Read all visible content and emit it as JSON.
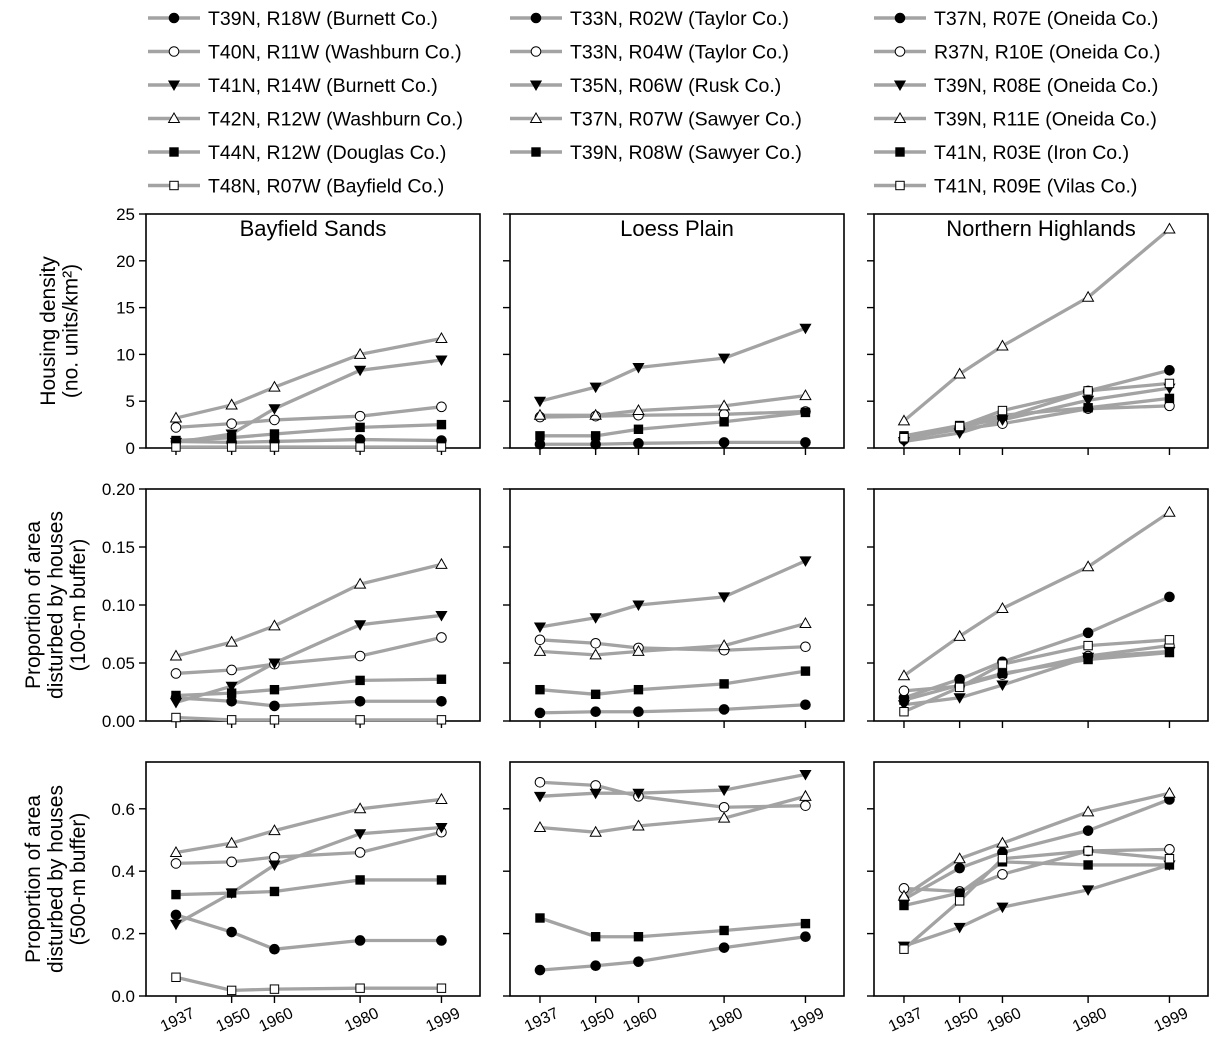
{
  "legend": [
    {
      "label": "T39N, R18W (Burnett Co.)",
      "marker": "filled-circle"
    },
    {
      "label": "T40N, R11W (Washburn Co.)",
      "marker": "open-circle"
    },
    {
      "label": "T41N, R14W (Burnett Co.)",
      "marker": "filled-triangle-down"
    },
    {
      "label": "T42N, R12W (Washburn Co.)",
      "marker": "open-triangle-up"
    },
    {
      "label": "T44N, R12W (Douglas Co.)",
      "marker": "filled-square"
    },
    {
      "label": "T48N, R07W (Bayfield Co.)",
      "marker": "open-square"
    },
    {
      "label": "T33N, R02W (Taylor Co.)",
      "marker": "filled-circle"
    },
    {
      "label": "T33N, R04W (Taylor Co.)",
      "marker": "open-circle"
    },
    {
      "label": "T35N, R06W (Rusk Co.)",
      "marker": "filled-triangle-down"
    },
    {
      "label": "T37N, R07W (Sawyer Co.)",
      "marker": "open-triangle-up"
    },
    {
      "label": "T39N, R08W (Sawyer Co.)",
      "marker": "filled-square"
    },
    {
      "label": "T37N, R07E (Oneida Co.)",
      "marker": "filled-circle"
    },
    {
      "label": "R37N, R10E (Oneida Co.)",
      "marker": "open-circle"
    },
    {
      "label": "T39N, R08E (Oneida Co.)",
      "marker": "filled-triangle-down"
    },
    {
      "label": "T39N, R11E (Oneida Co.)",
      "marker": "open-triangle-up"
    },
    {
      "label": "T41N, R03E (Iron Co.)",
      "marker": "filled-square"
    },
    {
      "label": "T41N, R09E (Vilas Co.)",
      "marker": "open-square"
    }
  ],
  "colors": {
    "line": "#a3a3a3",
    "marker": "#000000",
    "axis": "#000000"
  },
  "chart_data": {
    "type": "line",
    "x": [
      1937,
      1950,
      1960,
      1980,
      1999
    ],
    "regions": [
      "Bayfield Sands",
      "Loess Plain",
      "Northern Highlands"
    ],
    "rows": [
      {
        "ylabel_lines": [
          "Housing density",
          "(no. units/km²)"
        ],
        "ylim": [
          0,
          25
        ],
        "yticks": [
          "0",
          "5",
          "10",
          "15",
          "20",
          "25"
        ],
        "panels": [
          {
            "region": "Bayfield Sands",
            "series": [
              {
                "name": "T39N, R18W (Burnett Co.)",
                "marker": "filled-circle",
                "values": [
                  0.7,
                  0.6,
                  0.7,
                  0.9,
                  0.8
                ]
              },
              {
                "name": "T40N, R11W (Washburn Co.)",
                "marker": "open-circle",
                "values": [
                  2.2,
                  2.6,
                  3.0,
                  3.4,
                  4.4
                ]
              },
              {
                "name": "T41N, R14W (Burnett Co.)",
                "marker": "filled-triangle-down",
                "values": [
                  0.6,
                  1.5,
                  4.2,
                  8.3,
                  9.4
                ]
              },
              {
                "name": "T42N, R12W (Washburn Co.)",
                "marker": "open-triangle-up",
                "values": [
                  3.2,
                  4.6,
                  6.5,
                  10.0,
                  11.7
                ]
              },
              {
                "name": "T44N, R12W (Douglas Co.)",
                "marker": "filled-square",
                "values": [
                  0.8,
                  1.1,
                  1.5,
                  2.2,
                  2.5
                ]
              },
              {
                "name": "T48N, R07W (Bayfield Co.)",
                "marker": "open-square",
                "values": [
                  0.1,
                  0.1,
                  0.1,
                  0.1,
                  0.1
                ]
              }
            ]
          },
          {
            "region": "Loess Plain",
            "series": [
              {
                "name": "T33N, R02W (Taylor Co.)",
                "marker": "filled-circle",
                "values": [
                  0.4,
                  0.4,
                  0.5,
                  0.6,
                  0.6
                ]
              },
              {
                "name": "T33N, R04W (Taylor Co.)",
                "marker": "open-circle",
                "values": [
                  3.3,
                  3.4,
                  3.5,
                  3.6,
                  3.9
                ]
              },
              {
                "name": "T35N, R06W (Rusk Co.)",
                "marker": "filled-triangle-down",
                "values": [
                  5.0,
                  6.5,
                  8.6,
                  9.6,
                  12.8
                ]
              },
              {
                "name": "T37N, R07W (Sawyer Co.)",
                "marker": "open-triangle-up",
                "values": [
                  3.5,
                  3.5,
                  4.0,
                  4.5,
                  5.6
                ]
              },
              {
                "name": "T39N, R08W (Sawyer Co.)",
                "marker": "filled-square",
                "values": [
                  1.3,
                  1.3,
                  2.0,
                  2.8,
                  3.8
                ]
              }
            ]
          },
          {
            "region": "Northern Highlands",
            "series": [
              {
                "name": "T37N, R07E (Oneida Co.)",
                "marker": "filled-circle",
                "values": [
                  0.9,
                  2.2,
                  3.2,
                  6.1,
                  8.3
                ]
              },
              {
                "name": "R37N, R10E (Oneida Co.)",
                "marker": "open-circle",
                "values": [
                  1.0,
                  2.0,
                  2.6,
                  4.2,
                  4.5
                ]
              },
              {
                "name": "T39N, R08E (Oneida Co.)",
                "marker": "filled-triangle-down",
                "values": [
                  0.7,
                  1.6,
                  3.0,
                  5.1,
                  6.4
                ]
              },
              {
                "name": "T39N, R11E (Oneida Co.)",
                "marker": "open-triangle-up",
                "values": [
                  2.9,
                  7.9,
                  10.9,
                  16.1,
                  23.4
                ]
              },
              {
                "name": "T41N, R03E (Iron Co.)",
                "marker": "filled-square",
                "values": [
                  1.3,
                  2.4,
                  3.5,
                  4.3,
                  5.3
                ]
              },
              {
                "name": "T41N, R09E (Vilas Co.)",
                "marker": "open-square",
                "values": [
                  1.1,
                  2.3,
                  4.0,
                  6.1,
                  6.9
                ]
              }
            ]
          }
        ]
      },
      {
        "ylabel_lines": [
          "Proportion of area",
          "disturbed by houses",
          "(100-m buffer)"
        ],
        "ylim": [
          0,
          0.2
        ],
        "yticks": [
          "0.00",
          "0.05",
          "0.10",
          "0.15",
          "0.20"
        ],
        "panels": [
          {
            "region": "Bayfield Sands",
            "series": [
              {
                "name": "T39N, R18W (Burnett Co.)",
                "marker": "filled-circle",
                "values": [
                  0.02,
                  0.017,
                  0.013,
                  0.017,
                  0.017
                ]
              },
              {
                "name": "T40N, R11W (Washburn Co.)",
                "marker": "open-circle",
                "values": [
                  0.041,
                  0.044,
                  0.049,
                  0.056,
                  0.072
                ]
              },
              {
                "name": "T41N, R14W (Burnett Co.)",
                "marker": "filled-triangle-down",
                "values": [
                  0.016,
                  0.03,
                  0.05,
                  0.083,
                  0.091
                ]
              },
              {
                "name": "T42N, R12W (Washburn Co.)",
                "marker": "open-triangle-up",
                "values": [
                  0.056,
                  0.068,
                  0.082,
                  0.118,
                  0.135
                ]
              },
              {
                "name": "T44N, R12W (Douglas Co.)",
                "marker": "filled-square",
                "values": [
                  0.022,
                  0.024,
                  0.027,
                  0.035,
                  0.036
                ]
              },
              {
                "name": "T48N, R07W (Bayfield Co.)",
                "marker": "open-square",
                "values": [
                  0.003,
                  0.001,
                  0.001,
                  0.001,
                  0.001
                ]
              }
            ]
          },
          {
            "region": "Loess Plain",
            "series": [
              {
                "name": "T33N, R02W (Taylor Co.)",
                "marker": "filled-circle",
                "values": [
                  0.007,
                  0.008,
                  0.008,
                  0.01,
                  0.014
                ]
              },
              {
                "name": "T33N, R04W (Taylor Co.)",
                "marker": "open-circle",
                "values": [
                  0.07,
                  0.067,
                  0.063,
                  0.061,
                  0.064
                ]
              },
              {
                "name": "T35N, R06W (Rusk Co.)",
                "marker": "filled-triangle-down",
                "values": [
                  0.081,
                  0.089,
                  0.1,
                  0.107,
                  0.138
                ]
              },
              {
                "name": "T37N, R07W (Sawyer Co.)",
                "marker": "open-triangle-up",
                "values": [
                  0.06,
                  0.057,
                  0.06,
                  0.065,
                  0.084
                ]
              },
              {
                "name": "T39N, R08W (Sawyer Co.)",
                "marker": "filled-square",
                "values": [
                  0.027,
                  0.023,
                  0.027,
                  0.032,
                  0.043
                ]
              }
            ]
          },
          {
            "region": "Northern Highlands",
            "series": [
              {
                "name": "T37N, R07E (Oneida Co.)",
                "marker": "filled-circle",
                "values": [
                  0.02,
                  0.036,
                  0.051,
                  0.076,
                  0.107
                ]
              },
              {
                "name": "R37N, R10E (Oneida Co.)",
                "marker": "open-circle",
                "values": [
                  0.026,
                  0.03,
                  0.04,
                  0.056,
                  0.065
                ]
              },
              {
                "name": "T39N, R08E (Oneida Co.)",
                "marker": "filled-triangle-down",
                "values": [
                  0.014,
                  0.02,
                  0.031,
                  0.055,
                  0.06
                ]
              },
              {
                "name": "T39N, R11E (Oneida Co.)",
                "marker": "open-triangle-up",
                "values": [
                  0.039,
                  0.073,
                  0.097,
                  0.133,
                  0.18
                ]
              },
              {
                "name": "T41N, R03E (Iron Co.)",
                "marker": "filled-square",
                "values": [
                  0.018,
                  0.031,
                  0.041,
                  0.053,
                  0.059
                ]
              },
              {
                "name": "T41N, R09E (Vilas Co.)",
                "marker": "open-square",
                "values": [
                  0.008,
                  0.029,
                  0.049,
                  0.065,
                  0.07
                ]
              }
            ]
          }
        ]
      },
      {
        "ylabel_lines": [
          "Proportion of area",
          "disturbed by houses",
          "(500-m buffer)"
        ],
        "ylim": [
          0,
          0.75
        ],
        "yticks": [
          "0.0",
          "0.2",
          "0.4",
          "0.6"
        ],
        "ytick_values": [
          0,
          0.2,
          0.4,
          0.6
        ],
        "panels": [
          {
            "region": "Bayfield Sands",
            "series": [
              {
                "name": "T39N, R18W (Burnett Co.)",
                "marker": "filled-circle",
                "values": [
                  0.26,
                  0.205,
                  0.15,
                  0.178,
                  0.178
                ]
              },
              {
                "name": "T40N, R11W (Washburn Co.)",
                "marker": "open-circle",
                "values": [
                  0.425,
                  0.43,
                  0.445,
                  0.46,
                  0.525
                ]
              },
              {
                "name": "T41N, R14W (Burnett Co.)",
                "marker": "filled-triangle-down",
                "values": [
                  0.23,
                  0.33,
                  0.42,
                  0.52,
                  0.54
                ]
              },
              {
                "name": "T42N, R12W (Washburn Co.)",
                "marker": "open-triangle-up",
                "values": [
                  0.46,
                  0.49,
                  0.53,
                  0.6,
                  0.63
                ]
              },
              {
                "name": "T44N, R12W (Douglas Co.)",
                "marker": "filled-square",
                "values": [
                  0.325,
                  0.33,
                  0.335,
                  0.372,
                  0.372
                ]
              },
              {
                "name": "T48N, R07W (Bayfield Co.)",
                "marker": "open-square",
                "values": [
                  0.06,
                  0.018,
                  0.022,
                  0.025,
                  0.025
                ]
              }
            ]
          },
          {
            "region": "Loess Plain",
            "series": [
              {
                "name": "T33N, R02W (Taylor Co.)",
                "marker": "filled-circle",
                "values": [
                  0.083,
                  0.097,
                  0.11,
                  0.155,
                  0.19
                ]
              },
              {
                "name": "T33N, R04W (Taylor Co.)",
                "marker": "open-circle",
                "values": [
                  0.685,
                  0.675,
                  0.64,
                  0.605,
                  0.61
                ]
              },
              {
                "name": "T35N, R06W (Rusk Co.)",
                "marker": "filled-triangle-down",
                "values": [
                  0.64,
                  0.65,
                  0.65,
                  0.66,
                  0.71
                ]
              },
              {
                "name": "T37N, R07W (Sawyer Co.)",
                "marker": "open-triangle-up",
                "values": [
                  0.54,
                  0.525,
                  0.545,
                  0.57,
                  0.64
                ]
              },
              {
                "name": "T39N, R08W (Sawyer Co.)",
                "marker": "filled-square",
                "values": [
                  0.25,
                  0.19,
                  0.19,
                  0.21,
                  0.232
                ]
              }
            ]
          },
          {
            "region": "Northern Highlands",
            "series": [
              {
                "name": "T37N, R07E (Oneida Co.)",
                "marker": "filled-circle",
                "values": [
                  0.31,
                  0.41,
                  0.46,
                  0.53,
                  0.63
                ]
              },
              {
                "name": "R37N, R10E (Oneida Co.)",
                "marker": "open-circle",
                "values": [
                  0.345,
                  0.335,
                  0.39,
                  0.465,
                  0.47
                ]
              },
              {
                "name": "T39N, R08E (Oneida Co.)",
                "marker": "filled-triangle-down",
                "values": [
                  0.16,
                  0.22,
                  0.285,
                  0.34,
                  0.42
                ]
              },
              {
                "name": "T39N, R11E (Oneida Co.)",
                "marker": "open-triangle-up",
                "values": [
                  0.32,
                  0.44,
                  0.49,
                  0.59,
                  0.65
                ]
              },
              {
                "name": "T41N, R03E (Iron Co.)",
                "marker": "filled-square",
                "values": [
                  0.29,
                  0.33,
                  0.43,
                  0.42,
                  0.42
                ]
              },
              {
                "name": "T41N, R09E (Vilas Co.)",
                "marker": "open-square",
                "values": [
                  0.15,
                  0.305,
                  0.44,
                  0.465,
                  0.44
                ]
              }
            ]
          }
        ]
      }
    ]
  }
}
